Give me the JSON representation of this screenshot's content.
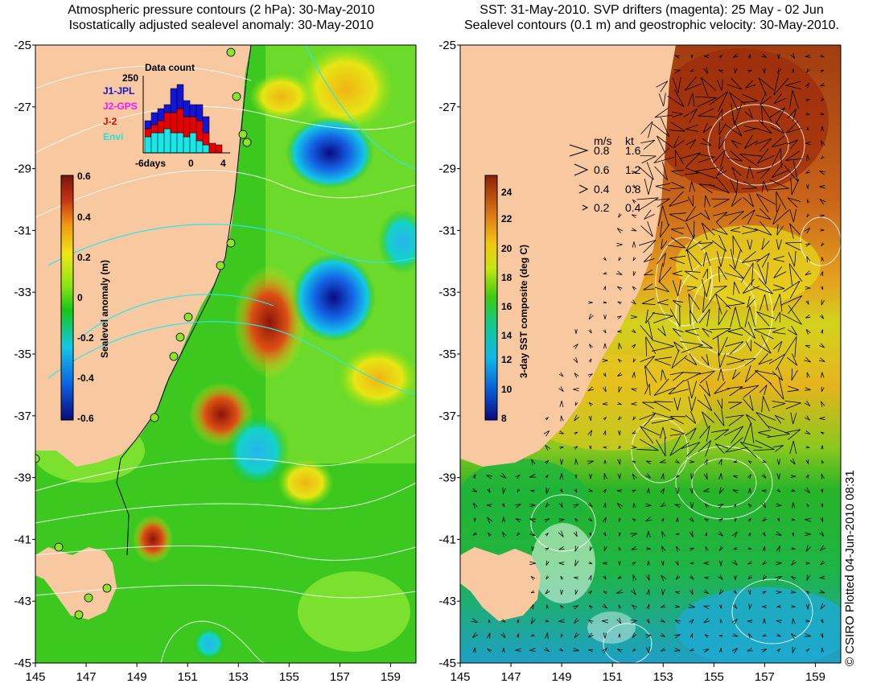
{
  "titles": {
    "left_line1": "Atmospheric pressure contours (2 hPa): 30-May-2010",
    "left_line2": "Isostatically adjusted sealevel anomaly: 30-May-2010",
    "right_line1": "SST: 31-May-2010. SVP drifters (magenta): 25 May - 02 Jun",
    "right_line2": "Sealevel contours (0.1 m) and geostrophic velocity: 30-May-2010."
  },
  "credit": "© CSIRO Plotted 04-Jun-2010 08:31",
  "axes": {
    "x_ticks": [
      "145",
      "147",
      "149",
      "151",
      "153",
      "155",
      "157",
      "159"
    ],
    "y_ticks": [
      "-25",
      "-27",
      "-29",
      "-31",
      "-33",
      "-35",
      "-37",
      "-39",
      "-41",
      "-43",
      "-45"
    ]
  },
  "left_colorbar": {
    "label": "Sealevel anomaly (m)",
    "ticks": [
      "0.6",
      "0.4",
      "0.2",
      "0",
      "-0.2",
      "-0.4",
      "-0.6"
    ]
  },
  "right_colorbar": {
    "label": "3-day SST composite (deg C)",
    "ticks": [
      "24",
      "22",
      "20",
      "18",
      "16",
      "14",
      "12",
      "10",
      "8"
    ]
  },
  "data_count_inset": {
    "title": "Data count",
    "ymax": "250",
    "series": [
      {
        "name": "J1-JPL",
        "color": "#1414d2"
      },
      {
        "name": "J2-GPS",
        "color": "#ff14ff"
      },
      {
        "name": "J-2",
        "color": "#e60000"
      },
      {
        "name": "Envi",
        "color": "#19e6e6"
      }
    ],
    "x_ticks": [
      "-6days",
      "0",
      "4"
    ]
  },
  "velocity_legend": {
    "headers": [
      "m/s",
      "kt"
    ],
    "rows": [
      [
        "0.8",
        "1.6"
      ],
      [
        "0.6",
        "1.2"
      ],
      [
        "0.4",
        "0.8"
      ],
      [
        "0.2",
        "0.4"
      ]
    ]
  }
}
